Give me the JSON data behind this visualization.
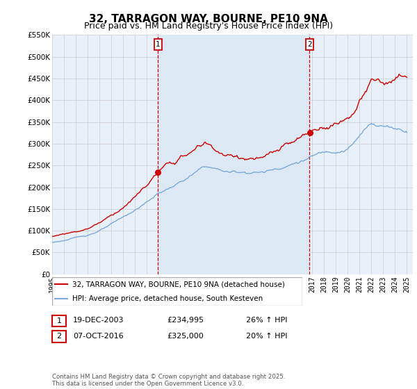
{
  "title": "32, TARRAGON WAY, BOURNE, PE10 9NA",
  "subtitle": "Price paid vs. HM Land Registry's House Price Index (HPI)",
  "ylim": [
    0,
    550000
  ],
  "yticks": [
    0,
    50000,
    100000,
    150000,
    200000,
    250000,
    300000,
    350000,
    400000,
    450000,
    500000,
    550000
  ],
  "ytick_labels": [
    "£0",
    "£50K",
    "£100K",
    "£150K",
    "£200K",
    "£250K",
    "£300K",
    "£350K",
    "£400K",
    "£450K",
    "£500K",
    "£550K"
  ],
  "purchase1_date": 2003.96,
  "purchase1_price": 234995,
  "purchase1_label": "1",
  "purchase2_date": 2016.77,
  "purchase2_price": 325000,
  "purchase2_label": "2",
  "line_color_red": "#cc0000",
  "line_color_blue": "#7aaadd",
  "vline_color": "#cc0000",
  "shade_color": "#dde8f5",
  "grid_color": "#cccccc",
  "background_color": "#e8f0fa",
  "legend_label_red": "32, TARRAGON WAY, BOURNE, PE10 9NA (detached house)",
  "legend_label_blue": "HPI: Average price, detached house, South Kesteven",
  "table_row1": [
    "1",
    "19-DEC-2003",
    "£234,995",
    "26% ↑ HPI"
  ],
  "table_row2": [
    "2",
    "07-OCT-2016",
    "£325,000",
    "20% ↑ HPI"
  ],
  "footnote": "Contains HM Land Registry data © Crown copyright and database right 2025.\nThis data is licensed under the Open Government Licence v3.0.",
  "title_fontsize": 11,
  "subtitle_fontsize": 9
}
